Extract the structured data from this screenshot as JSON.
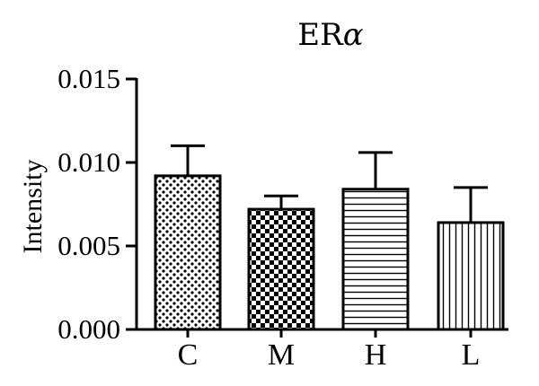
{
  "chart_data": {
    "type": "bar",
    "title": "ERα",
    "title_parts": {
      "main": "ER",
      "greek": "α"
    },
    "xlabel": "",
    "ylabel": "Intensity",
    "categories": [
      "C",
      "M",
      "H",
      "L"
    ],
    "values": [
      0.0092,
      0.0072,
      0.0084,
      0.0064
    ],
    "errors": [
      0.0018,
      0.0008,
      0.0022,
      0.0021
    ],
    "patterns": [
      "dots",
      "checker",
      "horizontal-lines",
      "vertical-lines"
    ],
    "ylim": [
      0,
      0.015
    ],
    "yticks": [
      "0.000",
      "0.005",
      "0.010",
      "0.015"
    ],
    "ytick_values": [
      0,
      0.005,
      0.01,
      0.015
    ],
    "grid": false,
    "legend": "none",
    "colors": {
      "bar_stroke": "#000000",
      "bar_fill": "#ffffff",
      "pattern": "#000000"
    }
  }
}
